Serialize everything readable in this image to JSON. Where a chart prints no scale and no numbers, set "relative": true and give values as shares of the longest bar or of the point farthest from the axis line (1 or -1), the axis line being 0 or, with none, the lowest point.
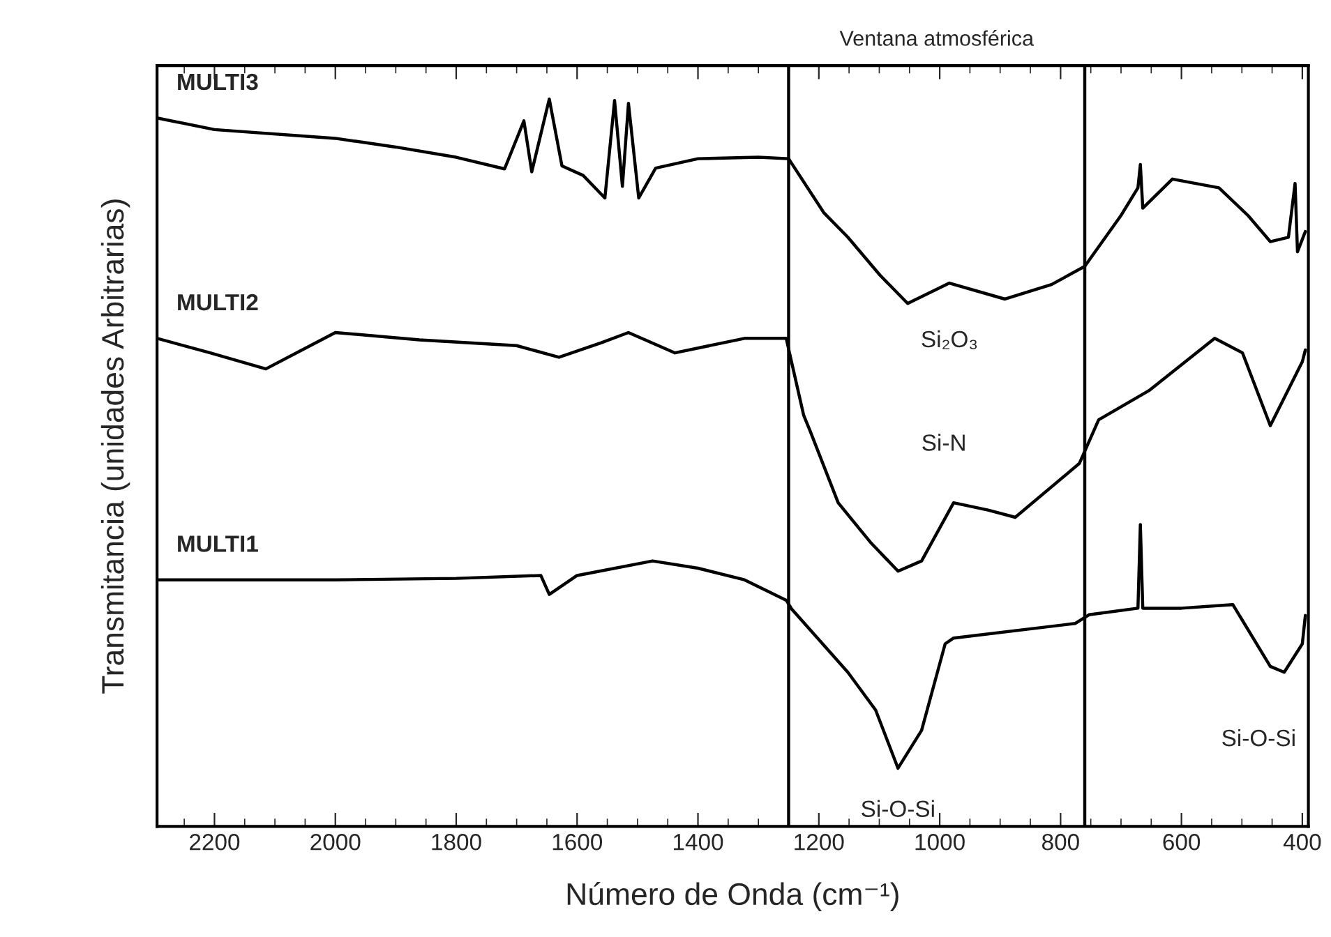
{
  "chart_data": {
    "type": "line",
    "relative": true,
    "xlabel": "Número de Onda (cm⁻¹)",
    "ylabel": "Transmitancia (unidades Arbitrarias)",
    "xlim": [
      2295,
      390
    ],
    "xticks": [
      2200,
      2000,
      1800,
      1600,
      1400,
      1200,
      1000,
      800,
      600,
      400
    ],
    "grid": false,
    "legend": false,
    "marker": "none",
    "line_style": "solid",
    "series": [
      {
        "name": "MULTI3",
        "color": "#000000",
        "x": [
          2295,
          2200,
          2000,
          1900,
          1800,
          1720,
          1688,
          1675,
          1646,
          1625,
          1590,
          1554,
          1538,
          1525,
          1515,
          1498,
          1470,
          1400,
          1300,
          1250,
          1192,
          1152,
          1099,
          1053,
          984,
          892,
          815,
          760,
          700,
          672,
          668,
          664,
          615,
          538,
          490,
          453,
          423,
          412,
          408,
          395
        ],
        "values": [
          0.974,
          0.958,
          0.946,
          0.934,
          0.92,
          0.904,
          0.97,
          0.9,
          1.0,
          0.908,
          0.895,
          0.864,
          0.998,
          0.88,
          0.994,
          0.864,
          0.905,
          0.918,
          0.92,
          0.918,
          0.844,
          0.81,
          0.758,
          0.719,
          0.747,
          0.725,
          0.745,
          0.77,
          0.84,
          0.878,
          0.91,
          0.85,
          0.89,
          0.878,
          0.84,
          0.804,
          0.81,
          0.884,
          0.79,
          0.818
        ]
      },
      {
        "name": "MULTI2",
        "color": "#000000",
        "x": [
          2295,
          2207,
          2115,
          2000,
          1861,
          1700,
          1630,
          1560,
          1515,
          1438,
          1323,
          1254,
          1225,
          1215,
          1168,
          1115,
          1069,
          1030,
          977,
          920,
          875,
          769,
          737,
          654,
          545,
          499,
          453,
          400,
          395
        ],
        "values": [
          0.671,
          0.651,
          0.629,
          0.679,
          0.669,
          0.661,
          0.645,
          0.665,
          0.679,
          0.651,
          0.671,
          0.671,
          0.565,
          0.545,
          0.445,
          0.391,
          0.351,
          0.365,
          0.445,
          0.435,
          0.425,
          0.499,
          0.559,
          0.599,
          0.671,
          0.651,
          0.551,
          0.639,
          0.655
        ]
      },
      {
        "name": "MULTI1",
        "color": "#000000",
        "x": [
          2295,
          2000,
          1800,
          1660,
          1646,
          1600,
          1475,
          1400,
          1323,
          1254,
          1245,
          1152,
          1106,
          1069,
          1030,
          991,
          977,
          776,
          753,
          672,
          668,
          664,
          600,
          515,
          453,
          430,
          400,
          395
        ],
        "values": [
          0.339,
          0.339,
          0.341,
          0.345,
          0.319,
          0.345,
          0.365,
          0.355,
          0.339,
          0.311,
          0.299,
          0.212,
          0.16,
          0.08,
          0.132,
          0.251,
          0.259,
          0.279,
          0.291,
          0.3,
          0.415,
          0.3,
          0.3,
          0.305,
          0.22,
          0.212,
          0.251,
          0.29
        ]
      }
    ],
    "ref_lines": [
      {
        "axis": "x",
        "value": 1250
      },
      {
        "axis": "x",
        "value": 760
      }
    ],
    "annotations": [
      "Ventana atmosférica",
      {
        "text": "Si₂O₃",
        "x": 984,
        "y": 0.747
      },
      {
        "text": "Si-N",
        "x": 977,
        "y": 0.445
      },
      {
        "text": "Si-O-Si",
        "x": 1069,
        "y": 0.08
      },
      {
        "text": "Si-O-Si",
        "x": 453,
        "y": 0.22
      }
    ]
  }
}
